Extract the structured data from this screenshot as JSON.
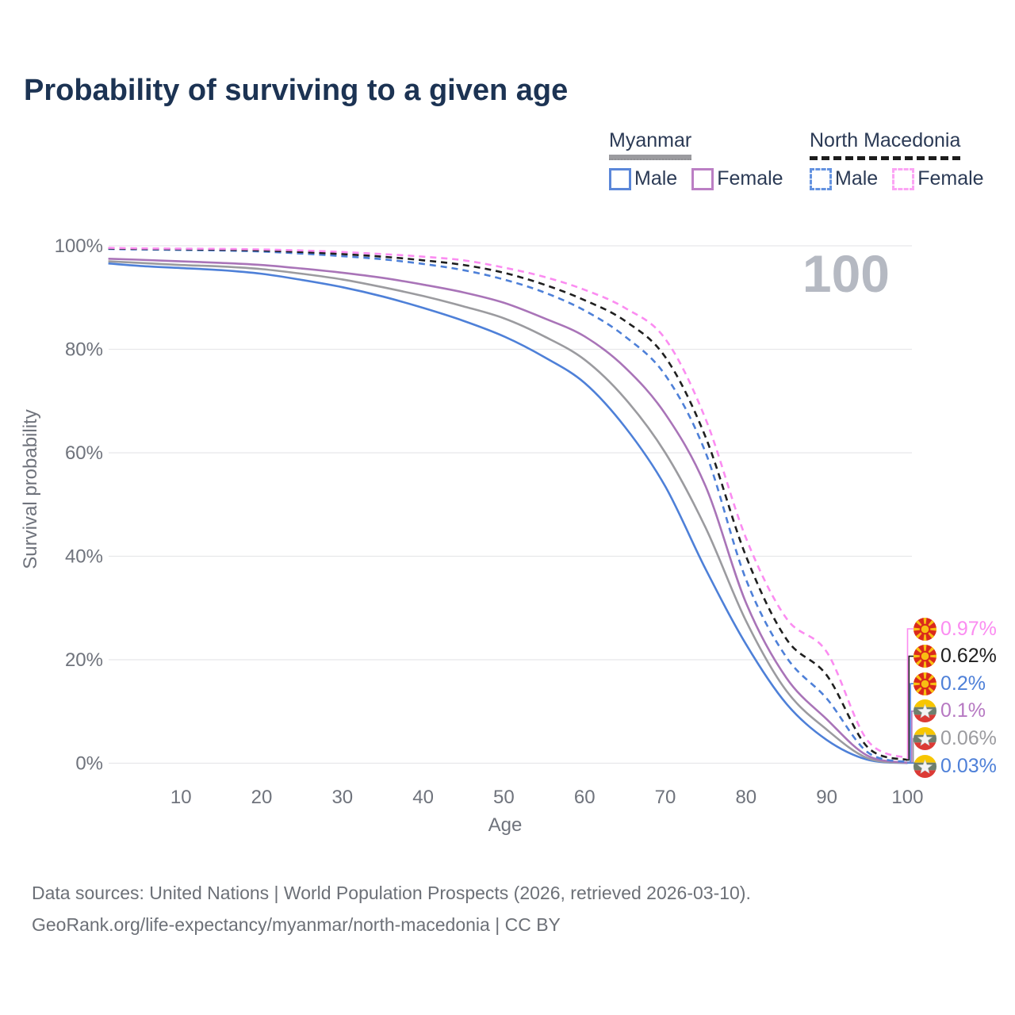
{
  "title": "Probability of surviving to a given age",
  "watermark": "100",
  "legend": {
    "groups": [
      {
        "name": "Myanmar",
        "line_style": "solid",
        "underline_color": "#9b9b9f",
        "items": [
          {
            "label": "Male",
            "color": "#5b87d9"
          },
          {
            "label": "Female",
            "color": "#bb7fc4"
          }
        ]
      },
      {
        "name": "North Macedonia",
        "line_style": "dashed",
        "underline_color": "#1c1c1c",
        "items": [
          {
            "label": "Male",
            "color": "#6392e0"
          },
          {
            "label": "Female",
            "color": "#fba4f4"
          }
        ]
      }
    ]
  },
  "chart_data": {
    "type": "line",
    "title": "Probability of surviving to a given age",
    "xlabel": "Age",
    "ylabel": "Survival probability",
    "xlim": [
      1,
      100
    ],
    "ylim": [
      0,
      100
    ],
    "grid": "horizontal",
    "legend_position": "top-right",
    "x_ticks": [
      10,
      20,
      30,
      40,
      50,
      60,
      70,
      80,
      90,
      100
    ],
    "y_ticks": [
      {
        "value": 0,
        "label": "0%"
      },
      {
        "value": 20,
        "label": "20%"
      },
      {
        "value": 40,
        "label": "40%"
      },
      {
        "value": 60,
        "label": "60%"
      },
      {
        "value": 80,
        "label": "80%"
      },
      {
        "value": 100,
        "label": "100%"
      }
    ],
    "x": [
      1,
      5,
      10,
      15,
      20,
      25,
      30,
      35,
      40,
      45,
      50,
      55,
      60,
      65,
      70,
      75,
      80,
      85,
      90,
      95,
      100
    ],
    "series": [
      {
        "name": "Myanmar Male",
        "color": "#4e80d8",
        "dashed": false,
        "values": [
          96.6,
          96.1,
          95.7,
          95.3,
          94.6,
          93.4,
          92.0,
          90.2,
          88.0,
          85.5,
          82.5,
          78.5,
          73.5,
          65.0,
          53.5,
          37.5,
          23.0,
          11.5,
          4.5,
          0.7,
          0.03
        ]
      },
      {
        "name": "Myanmar",
        "color": "#9b9b9f",
        "dashed": false,
        "values": [
          97.0,
          96.7,
          96.3,
          96.0,
          95.5,
          94.6,
          93.5,
          92.0,
          90.3,
          88.3,
          86.0,
          82.5,
          78.0,
          70.5,
          60.0,
          45.5,
          27.5,
          14.0,
          6.5,
          1.0,
          0.06
        ]
      },
      {
        "name": "Myanmar Female",
        "color": "#a974b8",
        "dashed": false,
        "values": [
          97.5,
          97.3,
          97.0,
          96.7,
          96.3,
          95.6,
          94.8,
          93.8,
          92.5,
          91.0,
          89.0,
          86.0,
          82.5,
          76.5,
          67.5,
          53.5,
          31.0,
          16.5,
          8.5,
          1.5,
          0.1
        ]
      },
      {
        "name": "North Macedonia Male",
        "color": "#4e80d8",
        "dashed": true,
        "values": [
          99.4,
          99.3,
          99.2,
          99.1,
          98.9,
          98.5,
          98.0,
          97.4,
          96.5,
          95.3,
          93.5,
          91.0,
          87.5,
          82.5,
          75.0,
          60.0,
          35.5,
          20.5,
          12.5,
          2.2,
          0.2
        ]
      },
      {
        "name": "North Macedonia",
        "color": "#1f1f1f",
        "dashed": true,
        "values": [
          99.5,
          99.4,
          99.35,
          99.25,
          99.1,
          98.8,
          98.4,
          97.9,
          97.2,
          96.3,
          94.8,
          92.5,
          89.5,
          85.5,
          78.5,
          63.0,
          40.0,
          24.0,
          17.0,
          3.2,
          0.62
        ]
      },
      {
        "name": "North Macedonia Female",
        "color": "#fb8cf1",
        "dashed": true,
        "values": [
          99.6,
          99.5,
          99.45,
          99.4,
          99.3,
          99.1,
          98.8,
          98.4,
          97.9,
          97.2,
          95.8,
          94.0,
          91.5,
          88.0,
          82.0,
          66.5,
          43.5,
          28.0,
          21.5,
          4.5,
          0.97
        ]
      }
    ],
    "end_labels": [
      {
        "series_index": 5,
        "flag": "north-macedonia",
        "value": "0.97%",
        "color": "#fb8cf1"
      },
      {
        "series_index": 4,
        "flag": "north-macedonia",
        "value": "0.62%",
        "color": "#1f1f1f"
      },
      {
        "series_index": 3,
        "flag": "north-macedonia",
        "value": "0.2%",
        "color": "#4e80d8"
      },
      {
        "series_index": 2,
        "flag": "myanmar",
        "value": "0.1%",
        "color": "#b678c2"
      },
      {
        "series_index": 1,
        "flag": "myanmar",
        "value": "0.06%",
        "color": "#9b9b9f"
      },
      {
        "series_index": 0,
        "flag": "myanmar",
        "value": "0.03%",
        "color": "#4e80d8"
      }
    ]
  },
  "footer": {
    "line1": "Data sources: United Nations | World Population Prospects (2026, retrieved 2026-03-10).",
    "line2": "GeoRank.org/life-expectancy/myanmar/north-macedonia | CC BY"
  }
}
